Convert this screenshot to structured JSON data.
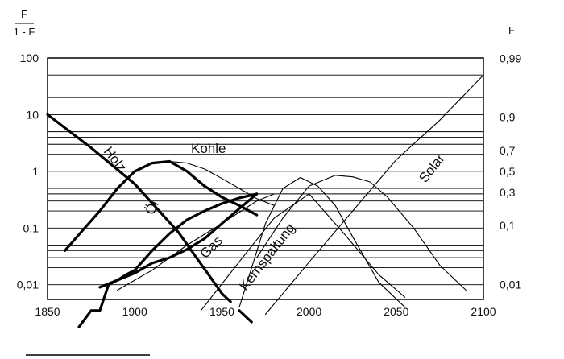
{
  "chart_data": {
    "type": "line",
    "title": "",
    "left_axis": {
      "title_numerator": "F",
      "title_denominator": "1 - F",
      "scale": "log",
      "ticks": [
        100,
        10,
        1,
        0.1,
        0.01
      ],
      "tick_labels": [
        "100",
        "10",
        "1",
        "0,1",
        "0,01"
      ],
      "ylim": [
        0.0055,
        100
      ]
    },
    "right_axis": {
      "title": "F",
      "ticks": [
        0.99,
        0.9,
        0.7,
        0.5,
        0.3,
        0.1,
        0.01
      ],
      "tick_labels": [
        "0,99",
        "0,9",
        "0,7",
        "0,5",
        "0,3",
        "0,1",
        "0,01"
      ]
    },
    "x_axis": {
      "ticks": [
        1850,
        1900,
        1950,
        2000,
        2050,
        2100
      ],
      "tick_labels": [
        "1850",
        "1900",
        "1950",
        "2000",
        "2050",
        "2100"
      ],
      "xlim": [
        1850,
        2100
      ]
    },
    "gridlines_left": [
      100,
      50,
      20,
      10,
      5,
      4,
      3,
      2,
      1,
      0.6,
      0.5,
      0.4,
      0.3,
      0.2,
      0.1,
      0.05,
      0.04,
      0.03,
      0.02,
      0.01
    ],
    "curve_labels": [
      "Holz",
      "Kohle",
      "Öl",
      "Gas",
      "Kernspaltung",
      "Solar"
    ],
    "series": [
      {
        "name": "Holz",
        "style": "bold",
        "x": [
          1850,
          1875,
          1900,
          1925,
          1950,
          1955
        ],
        "y": [
          10,
          2.6,
          0.6,
          0.085,
          0.007,
          0.005
        ]
      },
      {
        "name": "Holz",
        "style": "bold",
        "x": [
          1960,
          1967
        ],
        "y": [
          0.0035,
          0.0022
        ]
      },
      {
        "name": "Kohle",
        "style": "bold",
        "x": [
          1860,
          1870,
          1880,
          1890,
          1900,
          1910,
          1920,
          1930,
          1940,
          1950,
          1960,
          1970
        ],
        "y": [
          0.04,
          0.09,
          0.2,
          0.5,
          1.0,
          1.4,
          1.5,
          1.0,
          0.55,
          0.35,
          0.25,
          0.17
        ]
      },
      {
        "name": "Kohle",
        "style": "thin",
        "x": [
          1920,
          1930,
          1940,
          1950,
          1960,
          1970,
          1980
        ],
        "y": [
          1.5,
          1.4,
          1.1,
          0.75,
          0.5,
          0.33,
          0.25
        ]
      },
      {
        "name": "Öl",
        "style": "bold",
        "x": [
          1868,
          1875,
          1880,
          1885,
          1890,
          1895,
          1900,
          1910,
          1920,
          1930,
          1940,
          1950,
          1960,
          1970
        ],
        "y": [
          0.0018,
          0.0035,
          0.0035,
          0.01,
          0.012,
          0.015,
          0.018,
          0.04,
          0.08,
          0.14,
          0.2,
          0.27,
          0.34,
          0.4
        ]
      },
      {
        "name": "Gas",
        "style": "bold",
        "x": [
          1880,
          1890,
          1900,
          1910,
          1920,
          1930,
          1940,
          1950,
          1960,
          1970
        ],
        "y": [
          0.009,
          0.012,
          0.016,
          0.024,
          0.03,
          0.042,
          0.065,
          0.12,
          0.22,
          0.4
        ]
      },
      {
        "name": "Gas",
        "style": "thin",
        "x": [
          1890,
          1910,
          1930,
          1950,
          1970,
          1980
        ],
        "y": [
          0.008,
          0.018,
          0.05,
          0.12,
          0.3,
          0.4
        ]
      },
      {
        "name": "Kernspaltung",
        "style": "thin",
        "x": [
          1960,
          1975,
          1985,
          1995,
          2005,
          2015,
          2025,
          2040,
          2055
        ],
        "y": [
          0.004,
          0.12,
          0.5,
          0.78,
          0.55,
          0.25,
          0.07,
          0.011,
          0.004
        ]
      },
      {
        "name": "",
        "style": "thin",
        "x": [
          1970,
          1985,
          2000,
          2015,
          2025,
          2035,
          2045,
          2060,
          2075,
          2090
        ],
        "y": [
          0.03,
          0.15,
          0.55,
          0.85,
          0.8,
          0.65,
          0.35,
          0.1,
          0.022,
          0.008
        ]
      },
      {
        "name": "Solar",
        "style": "thin",
        "x": [
          1975,
          2000,
          2025,
          2050,
          2075,
          2100
        ],
        "y": [
          0.003,
          0.025,
          0.2,
          1.6,
          8,
          50
        ]
      },
      {
        "name": "",
        "style": "thin",
        "x": [
          1938,
          1965,
          1980,
          2000,
          2020,
          2040,
          2055
        ],
        "y": [
          0.0035,
          0.04,
          0.15,
          0.4,
          0.08,
          0.015,
          0.006
        ]
      }
    ]
  }
}
